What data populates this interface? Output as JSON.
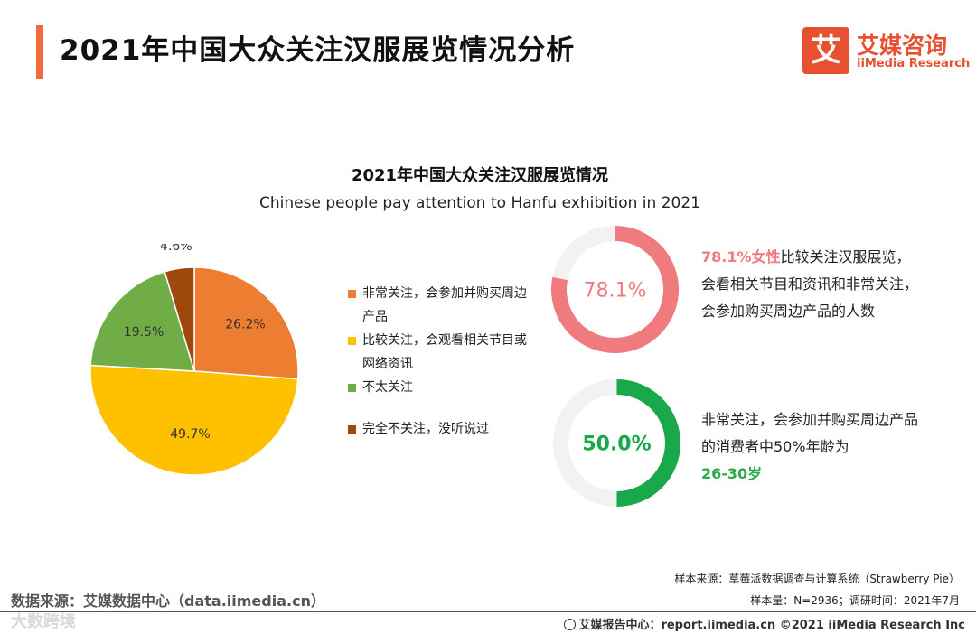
{
  "header": {
    "title": "2021年中国大众关注汉服展览情况分析",
    "logo_glyph": "艾",
    "logo_cn": "艾媒咨询",
    "logo_en": "iiMedia Research",
    "accent_color": "#f26b3a"
  },
  "chart_data": [
    {
      "type": "pie",
      "title": "2021年中国大众关注汉服展览情况",
      "subtitle": "Chinese people pay attention to Hanfu exhibition in 2021",
      "slices": [
        {
          "name": "非常关注，会参加并购买周边产品",
          "value": 26.2,
          "label": "26.2%",
          "color": "#ed7d31"
        },
        {
          "name": "比较关注，会观看相关节目或网络资讯",
          "value": 49.7,
          "label": "49.7%",
          "color": "#ffc000"
        },
        {
          "name": "不太关注",
          "value": 19.5,
          "label": "19.5%",
          "color": "#70ad47"
        },
        {
          "name": "完全不关注，没听说过",
          "value": 4.6,
          "label": "4.6%",
          "color": "#9e480e"
        }
      ],
      "legend_position": "right"
    },
    {
      "type": "donut",
      "value": 78.1,
      "label": "78.1%",
      "color": "#f07b7f",
      "track_color": "#f2f2f2"
    },
    {
      "type": "donut",
      "value": 50.0,
      "label": "50.0%",
      "color": "#19a84a",
      "track_color": "#f2f2f2"
    }
  ],
  "notes": {
    "note1_highlight": "78.1%女性",
    "note1_text": "比较关注汉服展览，会看相关节目和资讯和非常关注，会参加购买周边产品的人数",
    "note2_text": "非常关注，会参加并购买周边产品的消费者中50%年龄为",
    "note2_highlight": "26-30岁"
  },
  "footer": {
    "sample_source": "样本来源：草莓派数据调查与计算系统（Strawberry Pie）",
    "sample_size": "样本量：N=2936；调研时间：2021年7月",
    "data_source": "数据来源：艾媒数据中心（data.iimedia.cn）",
    "report_center": "艾媒报告中心：report.iimedia.cn   ©2021  iiMedia Research  Inc",
    "watermark": "大数跨境"
  }
}
